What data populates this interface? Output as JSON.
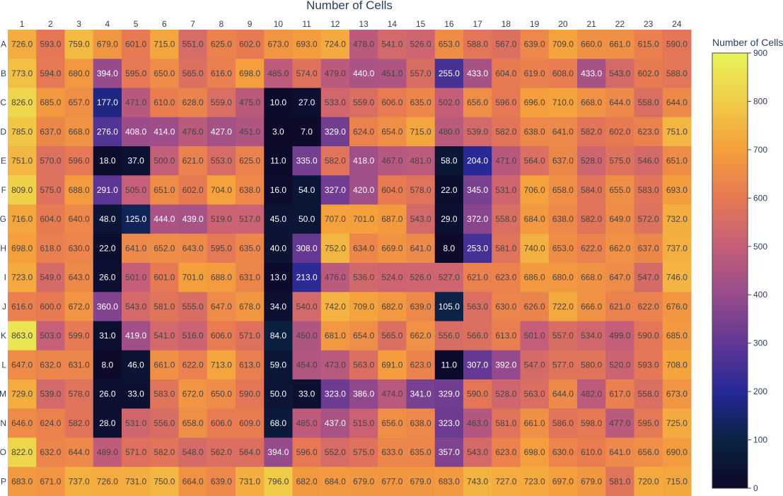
{
  "chart_data": {
    "type": "heatmap",
    "title": "Number of Cells",
    "x_categories": [
      "1",
      "2",
      "3",
      "4",
      "5",
      "6",
      "7",
      "8",
      "9",
      "10",
      "11",
      "12",
      "13",
      "14",
      "15",
      "16",
      "17",
      "18",
      "19",
      "20",
      "21",
      "22",
      "23",
      "24"
    ],
    "y_categories": [
      "A",
      "B",
      "C",
      "D",
      "E",
      "F",
      "G",
      "H",
      "I",
      "J",
      "K",
      "L",
      "M",
      "N",
      "O",
      "P"
    ],
    "values": [
      [
        726,
        593,
        759,
        679,
        601,
        715,
        551,
        625,
        602,
        673,
        693,
        724,
        478,
        541,
        526,
        653,
        588,
        567,
        639,
        709,
        660,
        661,
        615,
        590
      ],
      [
        773,
        594,
        680,
        394,
        595,
        650,
        565,
        616,
        698,
        485,
        574,
        479,
        440,
        451,
        557,
        255,
        433,
        604,
        619,
        608,
        433,
        543,
        602,
        588
      ],
      [
        826,
        685,
        657,
        177,
        471,
        610,
        628,
        559,
        475,
        10,
        27,
        533,
        559,
        606,
        635,
        502,
        656,
        596,
        696,
        710,
        668,
        644,
        558,
        644
      ],
      [
        785,
        637,
        668,
        276,
        408,
        414,
        476,
        427,
        451,
        3,
        7,
        329,
        624,
        654,
        715,
        480,
        539,
        582,
        638,
        641,
        582,
        602,
        623,
        751
      ],
      [
        751,
        570,
        596,
        18,
        37,
        500,
        621,
        553,
        625,
        11,
        335,
        582,
        418,
        467,
        481,
        58,
        204,
        471,
        564,
        637,
        528,
        575,
        546,
        651
      ],
      [
        809,
        575,
        688,
        291,
        505,
        651,
        602,
        704,
        638,
        16,
        54,
        327,
        420,
        604,
        578,
        22,
        345,
        531,
        706,
        658,
        584,
        655,
        583,
        693
      ],
      [
        716,
        604,
        640,
        48,
        125,
        444,
        439,
        519,
        517,
        45,
        50,
        707,
        701,
        687,
        543,
        29,
        372,
        558,
        684,
        638,
        582,
        649,
        572,
        732
      ],
      [
        698,
        618,
        630,
        22,
        641,
        652,
        643,
        595,
        635,
        40,
        308,
        752,
        634,
        669,
        641,
        8,
        253,
        581,
        740,
        653,
        622,
        662,
        637,
        737
      ],
      [
        723,
        549,
        643,
        26,
        501,
        601,
        701,
        688,
        631,
        13,
        213,
        476,
        536,
        524,
        526,
        527,
        621,
        623,
        686,
        680,
        668,
        647,
        547,
        746
      ],
      [
        616,
        600,
        672,
        360,
        543,
        581,
        555,
        647,
        678,
        34,
        540,
        742,
        709,
        682,
        639,
        105,
        563,
        630,
        626,
        722,
        666,
        621,
        622,
        676
      ],
      [
        863,
        503,
        599,
        31,
        419,
        541,
        516,
        606,
        571,
        84,
        450,
        681,
        654,
        565,
        662,
        556,
        566,
        613,
        501,
        557,
        534,
        499,
        590,
        685
      ],
      [
        647,
        632,
        631,
        8,
        46,
        661,
        622,
        713,
        613,
        59,
        454,
        473,
        563,
        691,
        623,
        11,
        307,
        392,
        547,
        577,
        580,
        520,
        593,
        708
      ],
      [
        729,
        539,
        578,
        26,
        33,
        583,
        672,
        650,
        590,
        50,
        33,
        323,
        386,
        474,
        341,
        329,
        590,
        528,
        563,
        644,
        482,
        617,
        558,
        673
      ],
      [
        646,
        624,
        582,
        28,
        531,
        556,
        658,
        606,
        609,
        68,
        485,
        437,
        515,
        656,
        638,
        323,
        463,
        581,
        661,
        586,
        598,
        477,
        595,
        725
      ],
      [
        822,
        632,
        644,
        489,
        571,
        582,
        548,
        562,
        564,
        394,
        596,
        552,
        575,
        633,
        635,
        357,
        543,
        623,
        698,
        630,
        610,
        641,
        656,
        690
      ],
      [
        683,
        671,
        737,
        726,
        731,
        750,
        664,
        639,
        731,
        796,
        682,
        684,
        679,
        677,
        679,
        683,
        743,
        727,
        723,
        697,
        679,
        581,
        720,
        715
      ]
    ],
    "zmin": 0,
    "zmax": 900,
    "value_format": "one-decimal",
    "colorscale": "plasma-like (dark navy to yellow)",
    "colorbar": {
      "title": "Number of Cells",
      "tickvals": [
        0,
        100,
        200,
        300,
        400,
        500,
        600,
        700,
        800,
        900
      ]
    }
  }
}
